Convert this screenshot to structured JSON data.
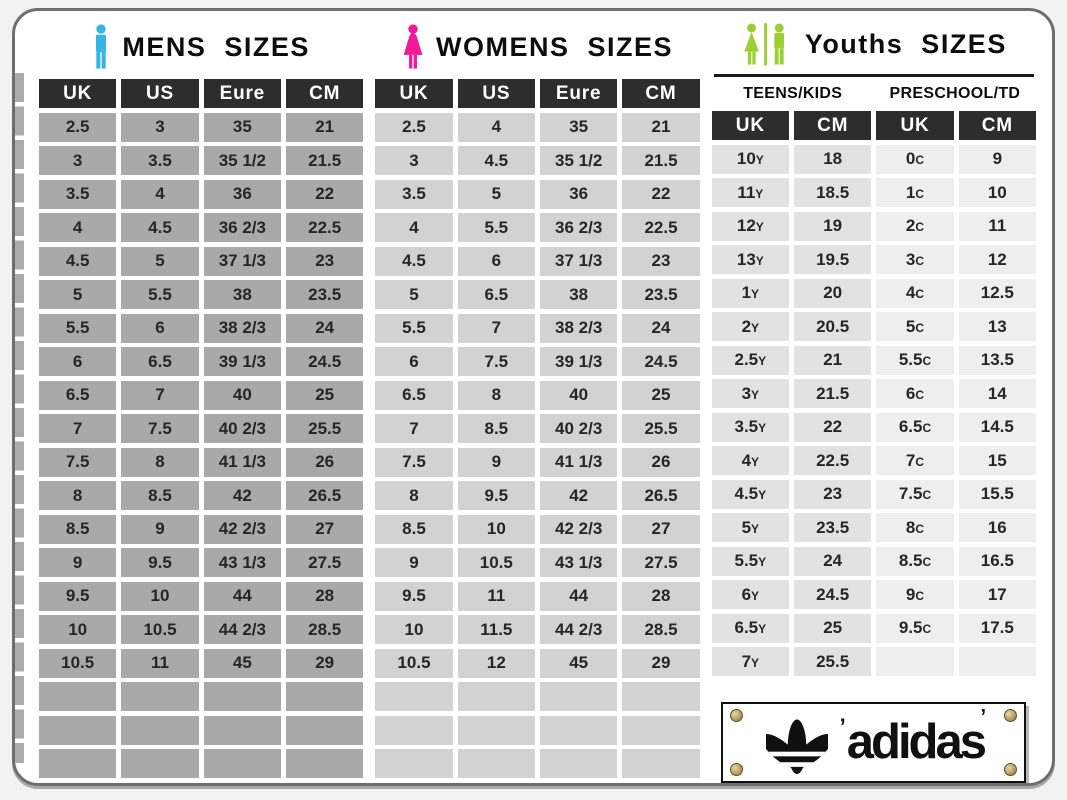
{
  "colors": {
    "header_bg": "#2d2d2d",
    "mens_cell": "#a9a9a9",
    "womens_cell": "#d2d2d2",
    "teens_cell": "#e2e2e2",
    "preschool_cell": "#eeeeee",
    "man_icon": "#35b4e5",
    "woman_icon": "#ee1a9b",
    "youths_icon": "#9ccf33"
  },
  "brand": {
    "name": "adidas",
    "mark_left": "’",
    "mark_right": "’"
  },
  "chart_data": [
    {
      "type": "table",
      "title": "MENS SIZES",
      "columns": [
        "UK",
        "US",
        "Eure",
        "CM"
      ],
      "rows": [
        [
          "2.5",
          "3",
          "35",
          "21"
        ],
        [
          "3",
          "3.5",
          "35 1/2",
          "21.5"
        ],
        [
          "3.5",
          "4",
          "36",
          "22"
        ],
        [
          "4",
          "4.5",
          "36 2/3",
          "22.5"
        ],
        [
          "4.5",
          "5",
          "37 1/3",
          "23"
        ],
        [
          "5",
          "5.5",
          "38",
          "23.5"
        ],
        [
          "5.5",
          "6",
          "38 2/3",
          "24"
        ],
        [
          "6",
          "6.5",
          "39 1/3",
          "24.5"
        ],
        [
          "6.5",
          "7",
          "40",
          "25"
        ],
        [
          "7",
          "7.5",
          "40 2/3",
          "25.5"
        ],
        [
          "7.5",
          "8",
          "41 1/3",
          "26"
        ],
        [
          "8",
          "8.5",
          "42",
          "26.5"
        ],
        [
          "8.5",
          "9",
          "42 2/3",
          "27"
        ],
        [
          "9",
          "9.5",
          "43 1/3",
          "27.5"
        ],
        [
          "9.5",
          "10",
          "44",
          "28"
        ],
        [
          "10",
          "10.5",
          "44 2/3",
          "28.5"
        ],
        [
          "10.5",
          "11",
          "45",
          "29"
        ]
      ],
      "empty_rows": 3
    },
    {
      "type": "table",
      "title": "WOMENS SIZES",
      "columns": [
        "UK",
        "US",
        "Eure",
        "CM"
      ],
      "rows": [
        [
          "2.5",
          "4",
          "35",
          "21"
        ],
        [
          "3",
          "4.5",
          "35 1/2",
          "21.5"
        ],
        [
          "3.5",
          "5",
          "36",
          "22"
        ],
        [
          "4",
          "5.5",
          "36 2/3",
          "22.5"
        ],
        [
          "4.5",
          "6",
          "37 1/3",
          "23"
        ],
        [
          "5",
          "6.5",
          "38",
          "23.5"
        ],
        [
          "5.5",
          "7",
          "38 2/3",
          "24"
        ],
        [
          "6",
          "7.5",
          "39 1/3",
          "24.5"
        ],
        [
          "6.5",
          "8",
          "40",
          "25"
        ],
        [
          "7",
          "8.5",
          "40 2/3",
          "25.5"
        ],
        [
          "7.5",
          "9",
          "41 1/3",
          "26"
        ],
        [
          "8",
          "9.5",
          "42",
          "26.5"
        ],
        [
          "8.5",
          "10",
          "42 2/3",
          "27"
        ],
        [
          "9",
          "10.5",
          "43 1/3",
          "27.5"
        ],
        [
          "9.5",
          "11",
          "44",
          "28"
        ],
        [
          "10",
          "11.5",
          "44 2/3",
          "28.5"
        ],
        [
          "10.5",
          "12",
          "45",
          "29"
        ]
      ],
      "empty_rows": 3
    },
    {
      "type": "table",
      "title": "Youths SIZES",
      "group_headers": [
        "TEENS/KIDS",
        "PRESCHOOL/TD"
      ],
      "columns": [
        "UK",
        "CM",
        "UK",
        "CM"
      ],
      "rows": [
        [
          "10y",
          "18",
          "0c",
          "9"
        ],
        [
          "11y",
          "18.5",
          "1c",
          "10"
        ],
        [
          "12y",
          "19",
          "2c",
          "11"
        ],
        [
          "13y",
          "19.5",
          "3c",
          "12"
        ],
        [
          "1y",
          "20",
          "4c",
          "12.5"
        ],
        [
          "2y",
          "20.5",
          "5c",
          "13"
        ],
        [
          "2.5y",
          "21",
          "5.5c",
          "13.5"
        ],
        [
          "3y",
          "21.5",
          "6c",
          "14"
        ],
        [
          "3.5y",
          "22",
          "6.5c",
          "14.5"
        ],
        [
          "4y",
          "22.5",
          "7c",
          "15"
        ],
        [
          "4.5y",
          "23",
          "7.5c",
          "15.5"
        ],
        [
          "5y",
          "23.5",
          "8c",
          "16"
        ],
        [
          "5.5y",
          "24",
          "8.5c",
          "16.5"
        ],
        [
          "6y",
          "24.5",
          "9c",
          "17"
        ],
        [
          "6.5y",
          "25",
          "9.5c",
          "17.5"
        ],
        [
          "7y",
          "25.5",
          "",
          ""
        ]
      ],
      "empty_rows": 0
    }
  ]
}
